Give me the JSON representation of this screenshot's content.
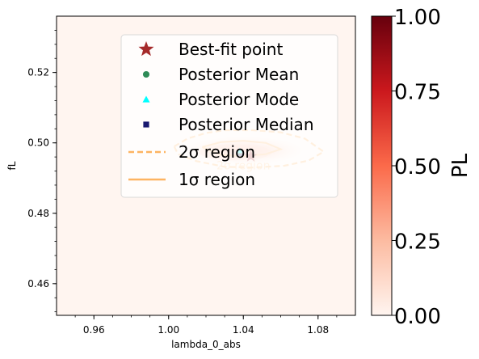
{
  "chart_data": {
    "type": "heatmap",
    "title": "",
    "xlabel": "lambda_0_abs",
    "ylabel": "fL",
    "xlim": [
      0.94,
      1.1
    ],
    "ylim": [
      0.451,
      0.536
    ],
    "x_ticks": [
      0.96,
      1.0,
      1.04,
      1.08
    ],
    "x_tick_labels": [
      "0.96",
      "1.00",
      "1.04",
      "1.08"
    ],
    "y_ticks": [
      0.46,
      0.48,
      0.5,
      0.52
    ],
    "y_tick_labels": [
      "0.46",
      "0.48",
      "0.50",
      "0.52"
    ],
    "colorbar": {
      "label": "PL",
      "range": [
        0.0,
        1.0
      ],
      "ticks": [
        0.0,
        0.25,
        0.5,
        0.75,
        1.0
      ],
      "tick_labels": [
        "0.00",
        "0.25",
        "0.50",
        "0.75",
        "1.00"
      ],
      "colormap": "Reds",
      "colors": [
        "#fff5f0",
        "#fcbba1",
        "#fb6a4a",
        "#cb181d",
        "#67000d"
      ]
    },
    "points": {
      "best_fit": {
        "x": 1.044,
        "y": 0.4962,
        "label": "Best-fit point",
        "color": "#a52a2a",
        "marker": "star"
      },
      "posterior_mean": {
        "x": 1.038,
        "y": 0.4975,
        "label": "Posterior Mean",
        "color": "#2e8b57",
        "marker": "circle"
      },
      "posterior_mode": {
        "x": 1.038,
        "y": 0.4978,
        "label": "Posterior Mode",
        "color": "#00ffff",
        "marker": "triangle"
      },
      "posterior_median": {
        "x": 1.038,
        "y": 0.497,
        "label": "Posterior Median",
        "color": "#191970",
        "marker": "square"
      }
    },
    "contours": {
      "two_sigma": {
        "label": "2σ region",
        "color": "#fdb462",
        "style": "dashed",
        "x": [
          1.003,
          1.01,
          1.02,
          1.03,
          1.045,
          1.06,
          1.073,
          1.083,
          1.075,
          1.062,
          1.045,
          1.03,
          1.015,
          1.005,
          1.003
        ],
        "y": [
          0.499,
          0.5012,
          0.5028,
          0.5036,
          0.5036,
          0.503,
          0.5012,
          0.4975,
          0.495,
          0.4935,
          0.493,
          0.4932,
          0.4948,
          0.4968,
          0.499
        ]
      },
      "one_sigma": {
        "label": "1σ region",
        "color": "#fdb462",
        "style": "solid",
        "x": [
          1.018,
          1.028,
          1.04,
          1.052,
          1.06,
          1.052,
          1.04,
          1.028,
          1.018
        ],
        "y": [
          0.4988,
          0.5002,
          0.5006,
          0.5,
          0.4982,
          0.4968,
          0.4962,
          0.4966,
          0.4988
        ]
      }
    },
    "contour_labels": [
      "2σ region"
    ],
    "legend_placement": "upper-center",
    "grid": false
  }
}
